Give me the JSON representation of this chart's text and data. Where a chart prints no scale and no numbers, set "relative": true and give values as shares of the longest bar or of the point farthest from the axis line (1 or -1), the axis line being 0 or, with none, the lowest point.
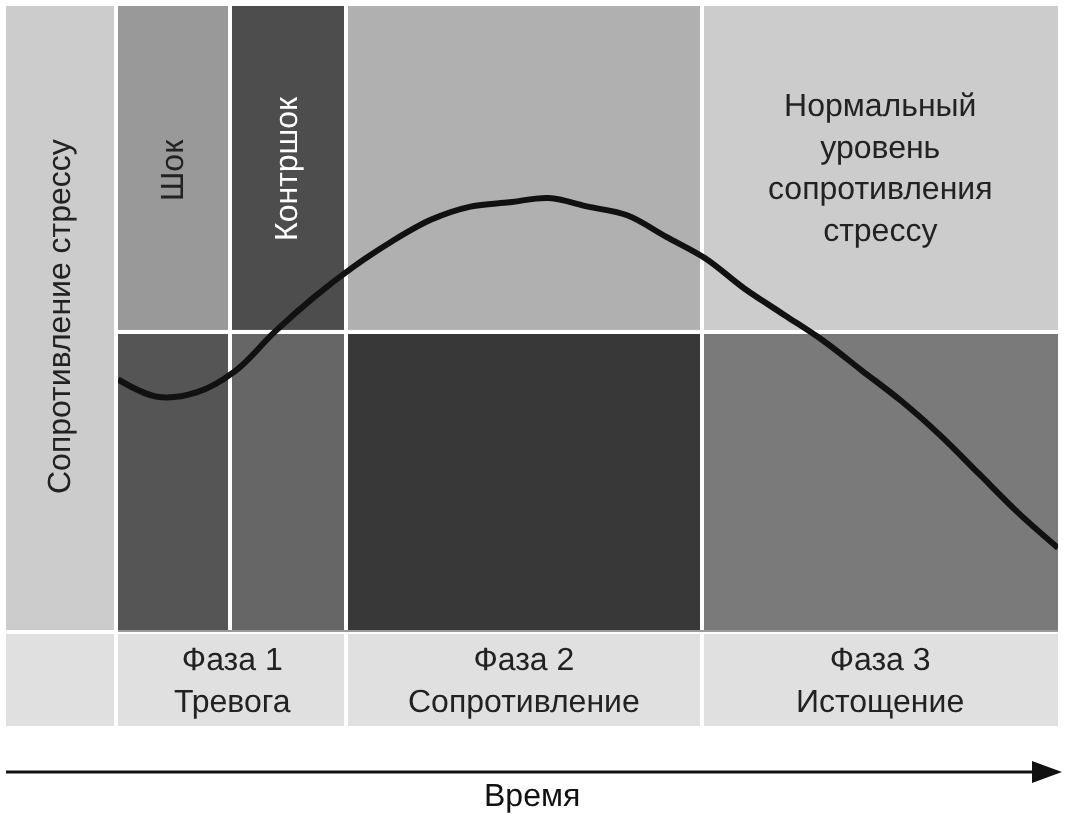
{
  "chart_data": {
    "type": "line",
    "relative": true,
    "ylabel": "Сопротивление стрессу",
    "categories": [
      null,
      null,
      null,
      null,
      null,
      null,
      null,
      null,
      null,
      null,
      null,
      null,
      null,
      null,
      null,
      null,
      null,
      null,
      null,
      null,
      null,
      null,
      null,
      null,
      null
    ],
    "values": [
      0.58,
      0.54,
      0.55,
      0.6,
      0.69,
      0.77,
      0.84,
      0.9,
      0.95,
      0.98,
      0.99,
      1.0,
      0.98,
      0.96,
      0.91,
      0.86,
      0.79,
      0.73,
      0.67,
      0.6,
      0.53,
      0.45,
      0.36,
      0.27,
      0.19
    ],
    "color": "#111111",
    "annotations": [
      "Шок",
      "Контршок",
      "Фаза 1\nТревога",
      "Фаза 2\nСопротивление",
      "Фаза 3\nИстощение",
      "Время"
    ],
    "ref_lines": [
      {
        "axis": "y",
        "value": 0.69,
        "label": "Нормальный\nуровень\nсопротивления\nстрессу",
        "color": "#ffffff"
      }
    ]
  }
}
